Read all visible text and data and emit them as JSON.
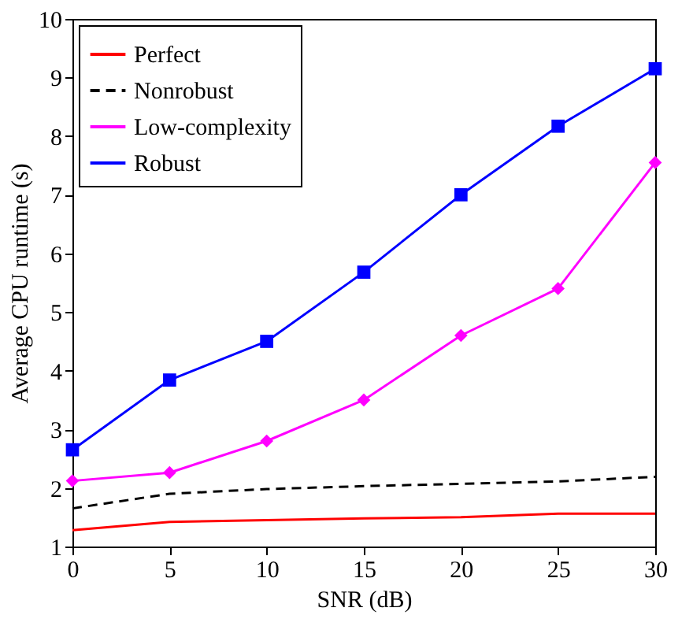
{
  "chart_data": {
    "type": "line",
    "xlabel": "SNR (dB)",
    "ylabel": "Average CPU runtime (s)",
    "x": [
      0,
      5,
      10,
      15,
      20,
      25,
      30
    ],
    "xlim": [
      0,
      30
    ],
    "xticks": [
      0,
      5,
      10,
      15,
      20,
      25,
      30
    ],
    "ylim": [
      1,
      10
    ],
    "yticks": [
      1,
      2,
      3,
      4,
      5,
      6,
      7,
      8,
      9,
      10
    ],
    "grid": false,
    "legend": "top left",
    "series": [
      {
        "name": "Perfect",
        "color": "#ff0000",
        "line_style": "solid",
        "marker": "none",
        "values": [
          1.28,
          1.42,
          1.45,
          1.48,
          1.5,
          1.56,
          1.56
        ]
      },
      {
        "name": "Nonrobust",
        "color": "#000000",
        "line_style": "dashed",
        "marker": "none",
        "values": [
          1.65,
          1.9,
          1.98,
          2.03,
          2.07,
          2.11,
          2.19
        ]
      },
      {
        "name": "Low-complexity",
        "color": "#ff00ff",
        "line_style": "solid",
        "marker": "diamond",
        "values": [
          2.12,
          2.26,
          2.8,
          3.5,
          4.6,
          5.4,
          7.55
        ]
      },
      {
        "name": "Robust",
        "color": "#0000ff",
        "line_style": "solid",
        "marker": "square",
        "values": [
          2.65,
          3.84,
          4.5,
          5.68,
          7.0,
          8.17,
          9.15
        ]
      }
    ]
  }
}
